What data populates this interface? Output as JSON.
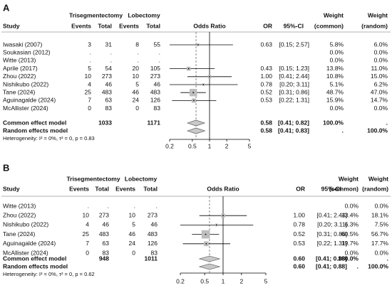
{
  "chart_data": [
    {
      "type": "forest",
      "panel": "A",
      "log": true,
      "xlim": [
        0.2,
        5
      ],
      "xticks": [
        0.2,
        0.5,
        1,
        2,
        5
      ],
      "headers": {
        "study": "Study",
        "group1": "Trisegmentectomy",
        "events1": "Events",
        "total1": "Total",
        "group2": "Lobectomy",
        "events2": "Events",
        "total2": "Total",
        "effect": "Odds Ratio",
        "or": "OR",
        "ci": "95%-CI",
        "weight1": "Weight",
        "weight1_sub": "(common)",
        "weight2": "Weight",
        "weight2_sub": "(random)"
      },
      "rows": [
        {
          "study": "Iwasaki (2007)",
          "e1": "3",
          "n1": "31",
          "e2": "8",
          "n2": "55",
          "or": 0.63,
          "lo": 0.15,
          "hi": 2.57,
          "w": 5.8,
          "or_text": "0.63",
          "ci_text": "[0.15; 2.57]",
          "wc": "5.8%",
          "wr": "6.0%"
        },
        {
          "study": "Soukasian (2012)",
          "e1": ".",
          "n1": ".",
          "e2": ".",
          "n2": ".",
          "wc": "0.0%",
          "wr": "0.0%"
        },
        {
          "study": "Witte (2013)",
          "e1": ".",
          "n1": ".",
          "e2": ".",
          "n2": ".",
          "wc": "0.0%",
          "wr": "0.0%"
        },
        {
          "study": "Aprile (2017)",
          "e1": "5",
          "n1": "54",
          "e2": "20",
          "n2": "105",
          "or": 0.43,
          "lo": 0.15,
          "hi": 1.23,
          "w": 13.8,
          "or_text": "0.43",
          "ci_text": "[0.15; 1.23]",
          "wc": "13.8%",
          "wr": "11.0%"
        },
        {
          "study": "Zhou (2022)",
          "e1": "10",
          "n1": "273",
          "e2": "10",
          "n2": "273",
          "or": 1.0,
          "lo": 0.41,
          "hi": 2.44,
          "w": 10.8,
          "or_text": "1.00",
          "ci_text": "[0.41; 2.44]",
          "wc": "10.8%",
          "wr": "15.0%"
        },
        {
          "study": "Nishikubo (2022)",
          "e1": "4",
          "n1": "46",
          "e2": "5",
          "n2": "46",
          "or": 0.78,
          "lo": 0.2,
          "hi": 3.11,
          "w": 5.1,
          "or_text": "0.78",
          "ci_text": "[0.20; 3.11]",
          "wc": "5.1%",
          "wr": "6.2%"
        },
        {
          "study": "Tane (2024)",
          "e1": "25",
          "n1": "483",
          "e2": "46",
          "n2": "483",
          "or": 0.52,
          "lo": 0.31,
          "hi": 0.86,
          "w": 48.7,
          "or_text": "0.52",
          "ci_text": "[0.31; 0.86]",
          "wc": "48.7%",
          "wr": "47.0%"
        },
        {
          "study": "Aguinagalde (2024)",
          "e1": "7",
          "n1": "63",
          "e2": "24",
          "n2": "126",
          "or": 0.53,
          "lo": 0.22,
          "hi": 1.31,
          "w": 15.9,
          "or_text": "0.53",
          "ci_text": "[0.22; 1.31]",
          "wc": "15.9%",
          "wr": "14.7%"
        },
        {
          "study": "McAllister (2024)",
          "e1": "0",
          "n1": "83",
          "e2": "0",
          "n2": "83",
          "wc": "0.0%",
          "wr": "0.0%"
        }
      ],
      "common": {
        "study": "Common effect model",
        "n1": "1033",
        "n2": "1171",
        "or": 0.58,
        "lo": 0.41,
        "hi": 0.82,
        "or_text": "0.58",
        "ci_text": "[0.41; 0.82]",
        "wc": "100.0%",
        "wr": "."
      },
      "random": {
        "study": "Random effects model",
        "or": 0.58,
        "lo": 0.41,
        "hi": 0.83,
        "or_text": "0.58",
        "ci_text": "[0.41; 0.83]",
        "wc": ".",
        "wr": "100.0%"
      },
      "heterogeneity": "Heterogeneity: I² = 0%, τ² = 0, p = 0.83"
    },
    {
      "type": "forest",
      "panel": "B",
      "log": true,
      "xlim": [
        0.2,
        5
      ],
      "xticks": [
        0.2,
        0.5,
        1,
        2,
        5
      ],
      "headers": {
        "study": "Study",
        "group1": "Trisegmentectomy",
        "events1": "Events",
        "total1": "Total",
        "group2": "Lobectomy",
        "events2": "Events",
        "total2": "Total",
        "effect": "Odds Ratio",
        "or": "OR",
        "ci": "95%-CI",
        "weight1": "Weight",
        "weight1_sub": "(common)",
        "weight2": "Weight",
        "weight2_sub": "(random)"
      },
      "rows": [
        {
          "study": "Witte (2013)",
          "e1": ".",
          "n1": ".",
          "e2": ".",
          "n2": ".",
          "wc": "0.0%",
          "wr": "0.0%"
        },
        {
          "study": "Zhou (2022)",
          "e1": "10",
          "n1": "273",
          "e2": "10",
          "n2": "273",
          "or": 1.0,
          "lo": 0.41,
          "hi": 2.44,
          "w": 13.4,
          "or_text": "1.00",
          "ci_text": "[0.41; 2.44]",
          "wc": "13.4%",
          "wr": "18.1%"
        },
        {
          "study": "Nishikubo (2022)",
          "e1": "4",
          "n1": "46",
          "e2": "5",
          "n2": "46",
          "or": 0.78,
          "lo": 0.2,
          "hi": 3.11,
          "w": 6.3,
          "or_text": "0.78",
          "ci_text": "[0.20; 3.11]",
          "wc": "6.3%",
          "wr": "7.5%"
        },
        {
          "study": "Tane (2024)",
          "e1": "25",
          "n1": "483",
          "e2": "46",
          "n2": "483",
          "or": 0.52,
          "lo": 0.31,
          "hi": 0.86,
          "w": 60.5,
          "or_text": "0.52",
          "ci_text": "[0.31; 0.86]",
          "wc": "60.5%",
          "wr": "56.7%"
        },
        {
          "study": "Aguinagalde (2024)",
          "e1": "7",
          "n1": "63",
          "e2": "24",
          "n2": "126",
          "or": 0.53,
          "lo": 0.22,
          "hi": 1.31,
          "w": 19.7,
          "or_text": "0.53",
          "ci_text": "[0.22; 1.31]",
          "wc": "19.7%",
          "wr": "17.7%"
        },
        {
          "study": "McAllister (2024)",
          "e1": "0",
          "n1": "83",
          "e2": "0",
          "n2": "83",
          "wc": "0.0%",
          "wr": "0.0%"
        }
      ],
      "common": {
        "study": "Common effect model",
        "n1": "948",
        "n2": "1011",
        "or": 0.6,
        "lo": 0.41,
        "hi": 0.88,
        "or_text": "0.60",
        "ci_text": "[0.41; 0.88]",
        "wc": "100.0%",
        "wr": "."
      },
      "random": {
        "study": "Random effects model",
        "or": 0.6,
        "lo": 0.41,
        "hi": 0.88,
        "or_text": "0.60",
        "ci_text": "[0.41; 0.88]",
        "wc": ".",
        "wr": "100.0%"
      },
      "heterogeneity": "Heterogeneity: I² = 0%, τ² = 0, p = 0.62"
    }
  ]
}
